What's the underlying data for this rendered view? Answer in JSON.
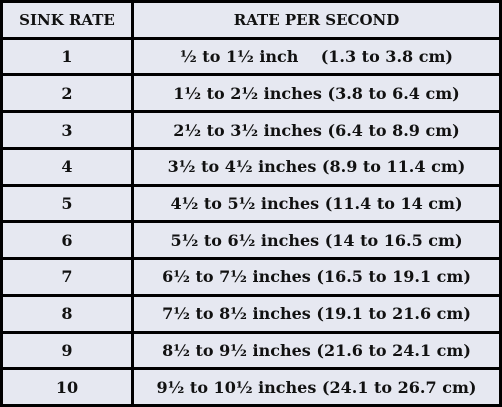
{
  "table": {
    "header": [
      "SINK RATE",
      "RATE PER SECOND"
    ],
    "rows": [
      [
        "1",
        "½ to 1½ inch    (1.3 to 3.8 cm)"
      ],
      [
        "2",
        "1½ to 2½ inches (3.8 to 6.4 cm)"
      ],
      [
        "3",
        "2½ to 3½ inches (6.4 to 8.9 cm)"
      ],
      [
        "4",
        "3½ to 4½ inches (8.9 to 11.4 cm)"
      ],
      [
        "5",
        "4½ to 5½ inches (11.4 to 14 cm)"
      ],
      [
        "6",
        "5½ to 6½ inches (14 to 16.5 cm)"
      ],
      [
        "7",
        "6½ to 7½ inches (16.5 to 19.1 cm)"
      ],
      [
        "8",
        "7½ to 8½ inches (19.1 to 21.6 cm)"
      ],
      [
        "9",
        "8½ to 9½ inches (21.6 to 24.1 cm)"
      ],
      [
        "10",
        "9½ to 10½ inches (24.1 to 26.7 cm)"
      ]
    ]
  }
}
